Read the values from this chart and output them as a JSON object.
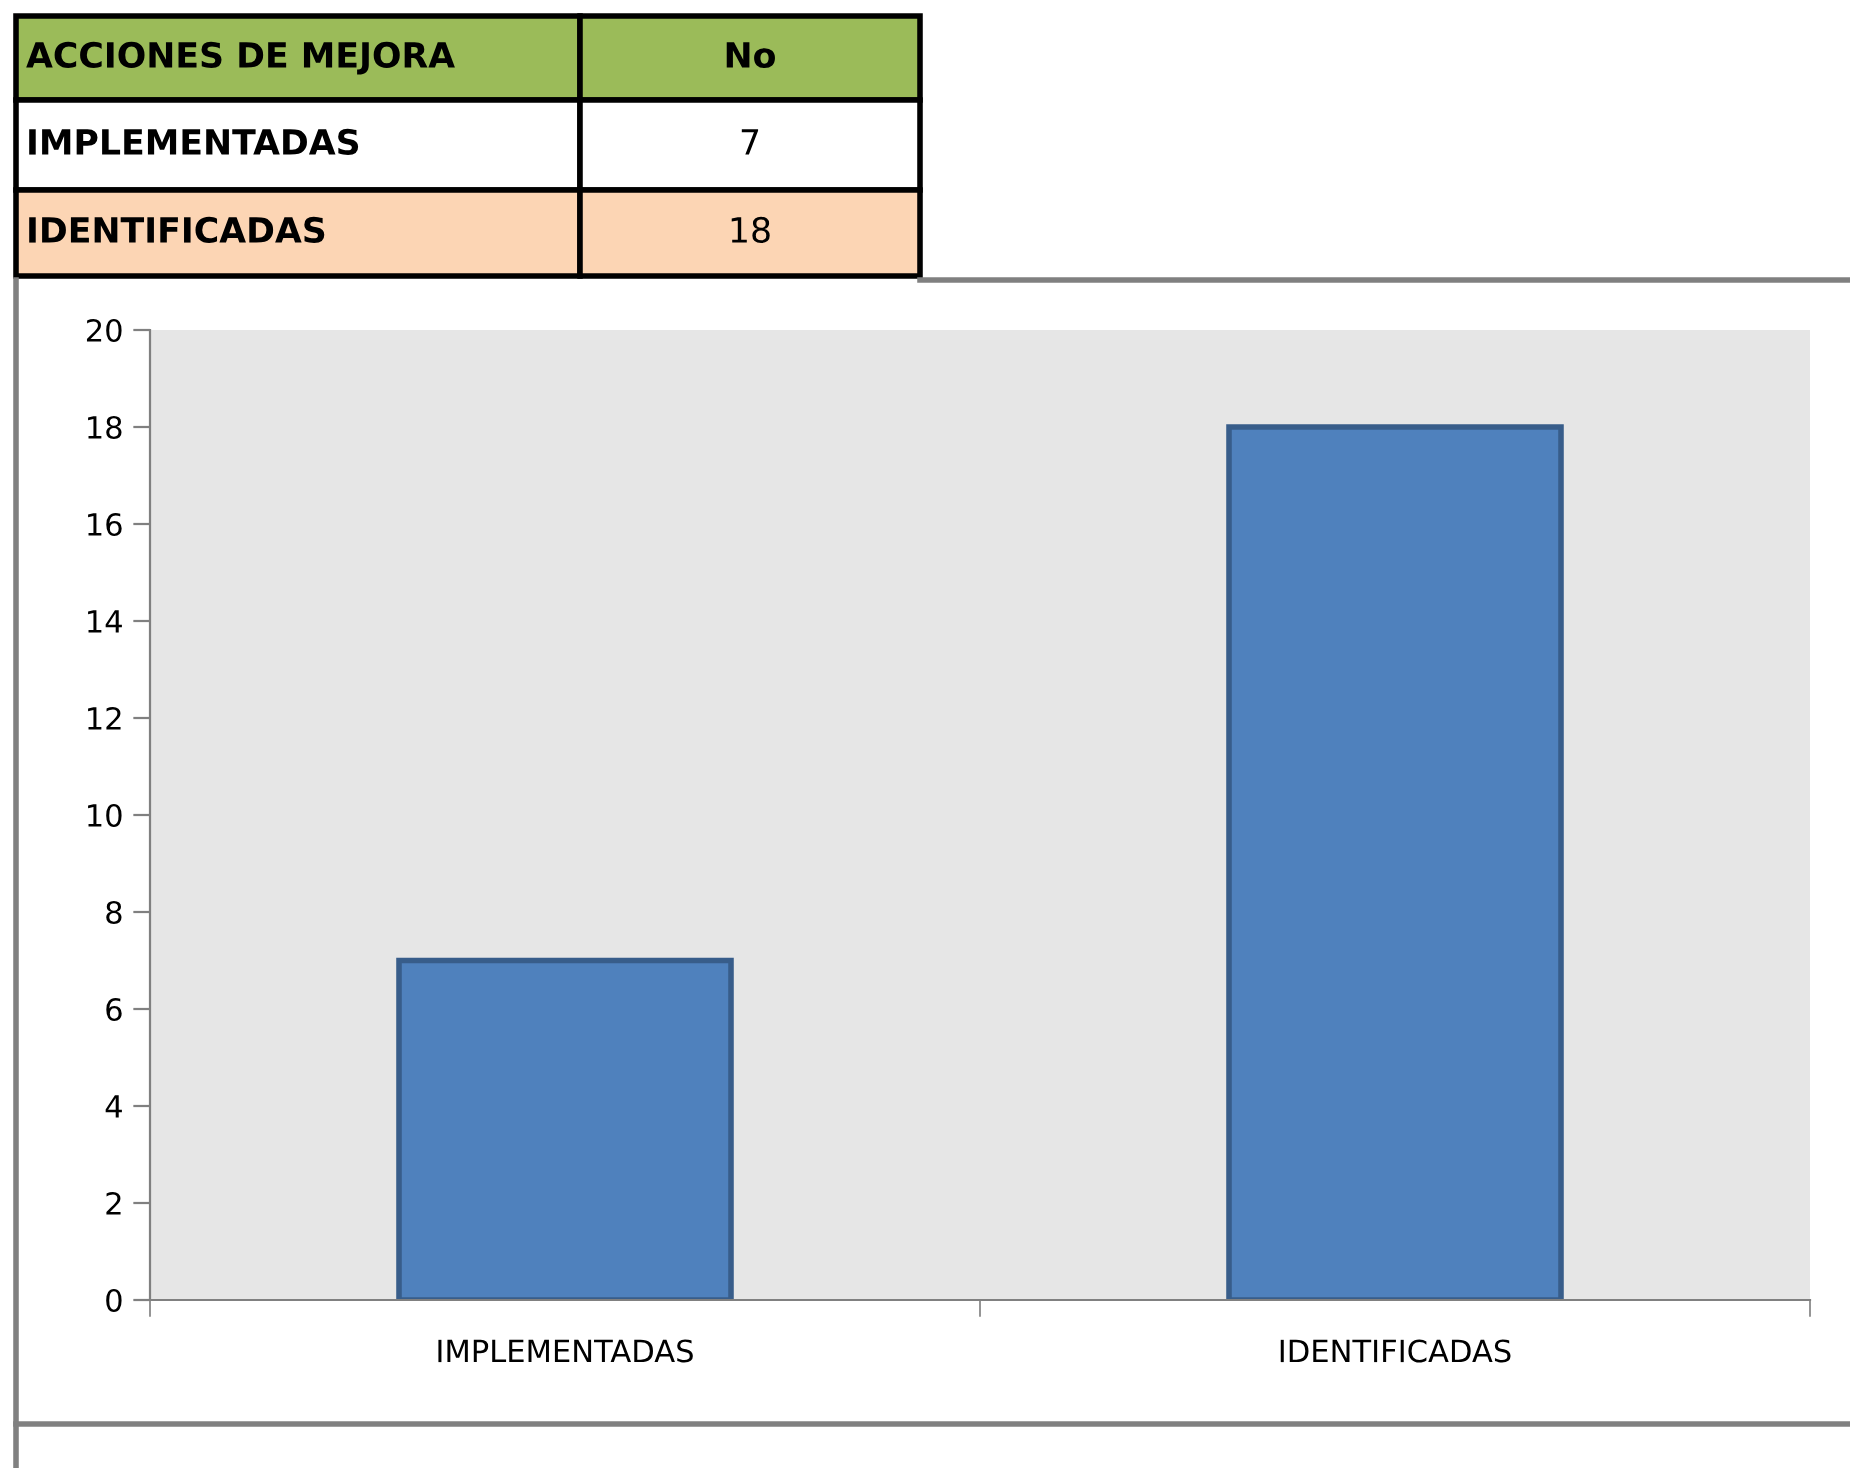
{
  "chart_data": [
    {
      "type": "other",
      "annotations": [
        "ACCIONES DE MEJORA",
        "No",
        "IMPLEMENTADAS",
        "7",
        "IDENTIFICADAS",
        "18"
      ]
    },
    {
      "type": "bar",
      "categories": [
        "IMPLEMENTADAS",
        "IDENTIFICADAS"
      ],
      "values": [
        7,
        18
      ],
      "color": "#4f81bd",
      "ylim": [
        0,
        20
      ],
      "yticks": [
        0,
        2,
        4,
        6,
        8,
        10,
        12,
        14,
        16,
        18,
        20
      ],
      "grid": false
    }
  ]
}
